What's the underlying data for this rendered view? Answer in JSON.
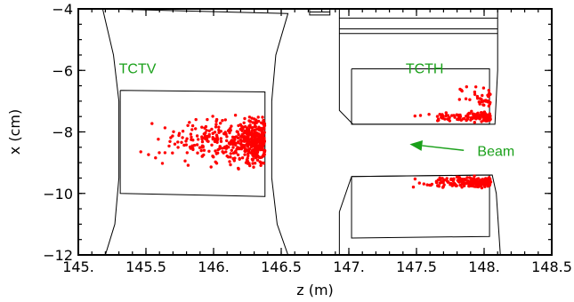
{
  "chart_data": {
    "type": "scatter",
    "xlabel": "z (m)",
    "ylabel": "x (cm)",
    "xlim": [
      145.0,
      148.5
    ],
    "ylim": [
      -12,
      -4
    ],
    "x_ticks": [
      145.0,
      145.5,
      146.0,
      146.5,
      147.0,
      147.5,
      148.0,
      148.5
    ],
    "x_tick_labels": [
      "145.",
      "145.5",
      "146.",
      "146.5",
      "147.",
      "147.5",
      "148.",
      "148.5"
    ],
    "y_ticks": [
      -12,
      -10,
      -8,
      -6,
      -4
    ],
    "y_tick_labels": [
      "−12",
      "−10",
      "−8",
      "−6",
      "−4"
    ],
    "grid": false,
    "colors": {
      "points": "#ff0000",
      "annotation": "#1aa01a",
      "outline": "#000000"
    },
    "annotations": [
      {
        "text": "TCTV",
        "x": 145.3,
        "y": -6.1
      },
      {
        "text": "TCTH",
        "x": 147.42,
        "y": -6.1
      },
      {
        "text": "Beam",
        "x": 147.95,
        "y": -8.6
      }
    ],
    "beam_arrow": {
      "from": [
        147.85,
        -8.6
      ],
      "to": [
        147.45,
        -8.4
      ]
    },
    "outlines": {
      "tctv_housing": [
        [
          145.18,
          -4.0
        ],
        [
          146.55,
          -4.15
        ],
        [
          146.46,
          -5.5
        ],
        [
          146.43,
          -7.0
        ],
        [
          146.43,
          -9.5
        ],
        [
          146.47,
          -11.0
        ],
        [
          146.55,
          -12.0
        ],
        [
          145.2,
          -12.0
        ],
        [
          145.27,
          -11.0
        ],
        [
          145.3,
          -9.5
        ],
        [
          145.3,
          -7.0
        ],
        [
          145.26,
          -5.5
        ],
        [
          145.18,
          -4.0
        ]
      ],
      "tctv_jaw": [
        [
          145.31,
          -6.65
        ],
        [
          146.38,
          -6.7
        ],
        [
          146.38,
          -10.1
        ],
        [
          145.31,
          -10.0
        ],
        [
          145.31,
          -6.65
        ]
      ],
      "tcth_upper_housing": [
        [
          146.93,
          -4.0
        ],
        [
          146.93,
          -7.3
        ],
        [
          147.03,
          -7.75
        ],
        [
          148.08,
          -7.75
        ],
        [
          148.1,
          -6.0
        ],
        [
          148.1,
          -4.0
        ]
      ],
      "tcth_upper_jaw": [
        [
          147.02,
          -5.95
        ],
        [
          148.04,
          -5.95
        ],
        [
          148.04,
          -7.75
        ],
        [
          147.02,
          -7.75
        ],
        [
          147.02,
          -5.95
        ]
      ],
      "tcth_lower_housing": [
        [
          146.93,
          -12.0
        ],
        [
          146.93,
          -10.6
        ],
        [
          147.02,
          -9.45
        ],
        [
          148.06,
          -9.4
        ],
        [
          148.09,
          -10.0
        ],
        [
          148.12,
          -12.0
        ]
      ],
      "tcth_lower_jaw": [
        [
          147.02,
          -9.45
        ],
        [
          148.04,
          -9.4
        ],
        [
          148.04,
          -11.4
        ],
        [
          147.02,
          -11.45
        ],
        [
          147.02,
          -9.45
        ]
      ],
      "tcth_top_lines": [
        [
          [
            146.93,
            -4.3
          ],
          [
            148.1,
            -4.3
          ]
        ],
        [
          [
            146.93,
            -4.65
          ],
          [
            148.1,
            -4.65
          ]
        ],
        [
          [
            146.93,
            -4.8
          ],
          [
            148.1,
            -4.8
          ]
        ]
      ],
      "small_component": [
        [
          146.71,
          -4.0
        ],
        [
          146.71,
          -4.2
        ],
        [
          146.86,
          -4.2
        ],
        [
          146.86,
          -4.0
        ]
      ],
      "small_component_line": [
        [
          146.71,
          -4.1
        ],
        [
          146.86,
          -4.1
        ]
      ]
    },
    "clusters": [
      {
        "name": "",
        "count": 380,
        "z": [
          145.33,
          146.38
        ],
        "x": [
          -9.35,
          -7.25
        ],
        "bias_z": 2.0
      },
      {
        "name": "",
        "count": 140,
        "z": [
          146.18,
          146.38
        ],
        "x": [
          -9.3,
          -7.3
        ],
        "bias_z": 1.0
      },
      {
        "name": "",
        "count": 120,
        "z": [
          147.38,
          148.05
        ],
        "x": [
          -7.75,
          -7.3
        ],
        "bias_z": 2.2
      },
      {
        "name": "",
        "count": 40,
        "z": [
          147.7,
          148.05
        ],
        "x": [
          -7.45,
          -6.4
        ],
        "bias_z": 2.5
      },
      {
        "name": "",
        "count": 200,
        "z": [
          147.38,
          148.05
        ],
        "x": [
          -9.9,
          -9.4
        ],
        "bias_z": 2.2
      }
    ]
  }
}
